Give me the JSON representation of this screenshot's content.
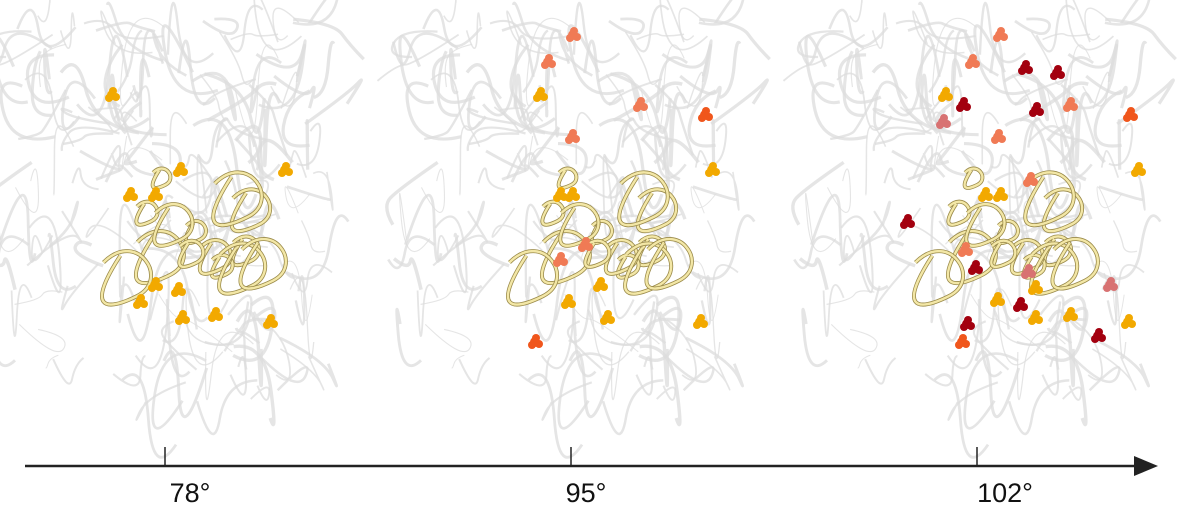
{
  "axis": {
    "ticks": [
      {
        "label": "78°"
      },
      {
        "label": "95°"
      },
      {
        "label": "102°"
      }
    ],
    "color": "#222222"
  },
  "colors": {
    "ribbon": "#dcdcdc",
    "rna": "#f3e7a6",
    "rna_outline": "#9a8a4a",
    "amber": "#f2a900",
    "salmon": "#f07a55",
    "orange_red": "#f0561c",
    "dark_red": "#a3000f",
    "pink": "#d87272"
  }
}
